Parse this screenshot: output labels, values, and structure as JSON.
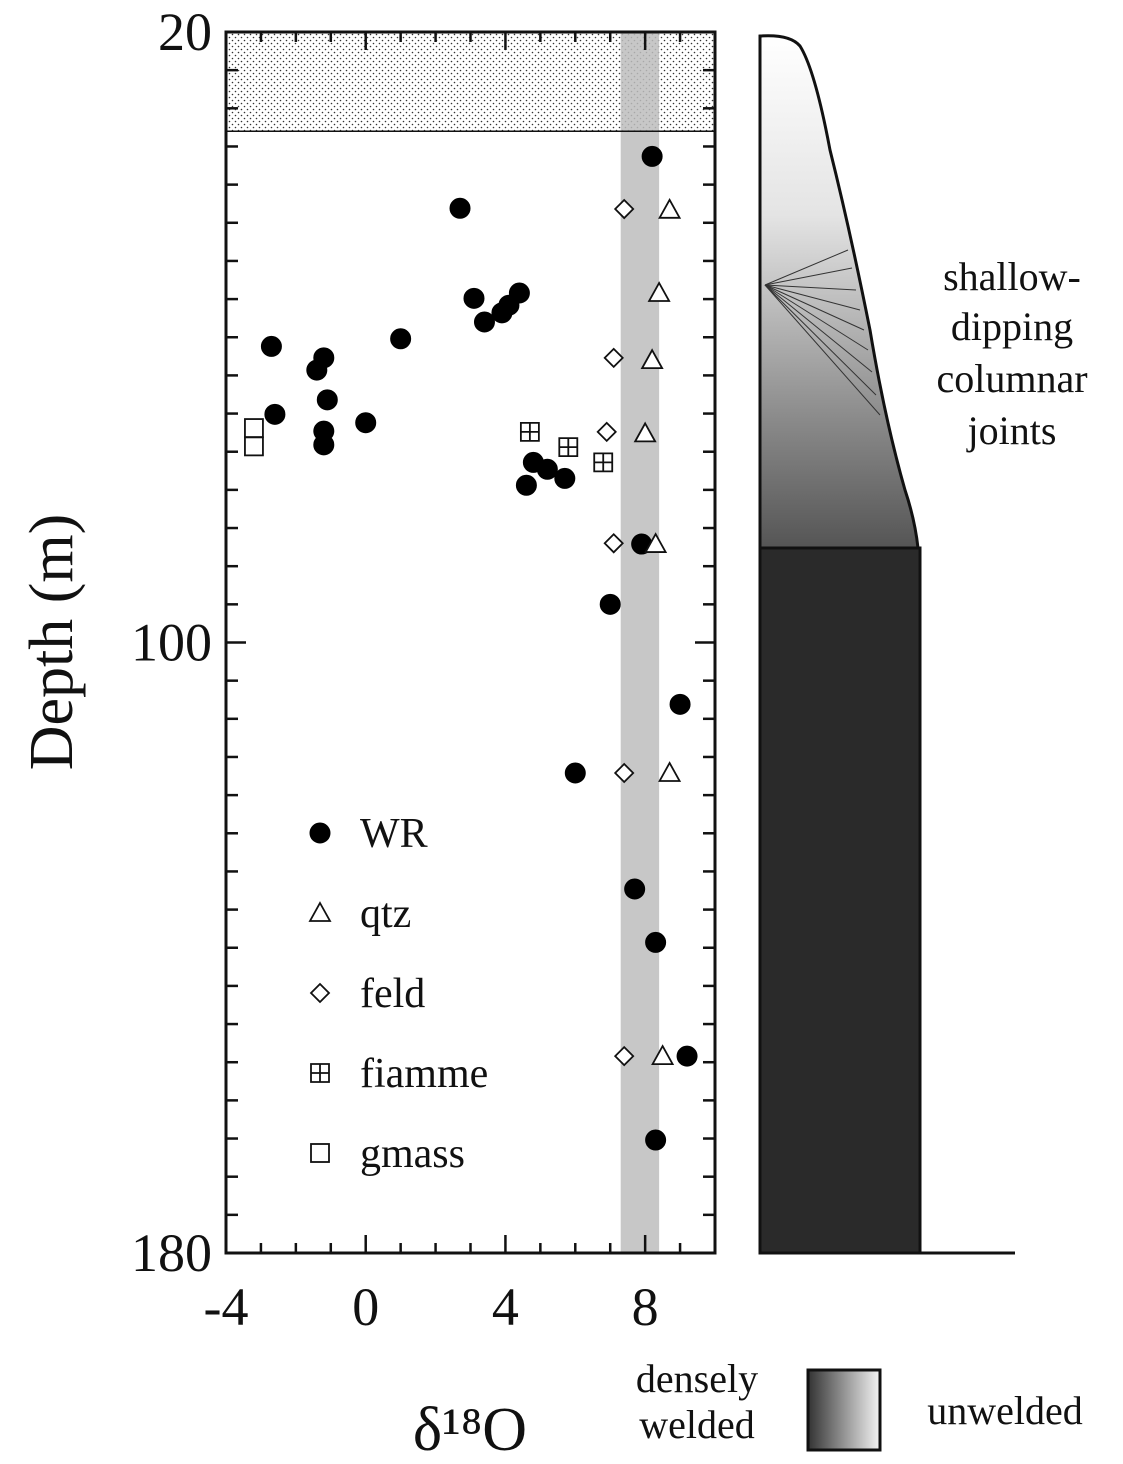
{
  "chart_data": {
    "type": "scatter",
    "xlabel": "δ¹⁸O",
    "ylabel": "Depth (m)",
    "xlim": [
      -4,
      10
    ],
    "ylim": [
      20,
      180
    ],
    "y_inverted": true,
    "xticks": [
      -4,
      0,
      4,
      8
    ],
    "xminorticks": [
      -3,
      -2,
      -1,
      1,
      2,
      3,
      5,
      6,
      7,
      9
    ],
    "yticks": [
      20,
      100,
      180
    ],
    "yminorticks": [
      25,
      30,
      35,
      40,
      45,
      50,
      55,
      60,
      65,
      70,
      75,
      80,
      85,
      90,
      95,
      105,
      110,
      115,
      120,
      125,
      130,
      135,
      140,
      145,
      150,
      155,
      160,
      165,
      170,
      175
    ],
    "stipple_ylim": [
      20,
      33
    ],
    "band_xlim": [
      7.3,
      8.4
    ],
    "series": [
      {
        "name": "WR",
        "marker": "circle",
        "color": "#000",
        "x": [
          8.2,
          2.7,
          3.1,
          3.4,
          3.9,
          4.1,
          4.4,
          1.0,
          -2.7,
          -1.2,
          -1.4,
          -1.1,
          -2.6,
          0.0,
          -1.2,
          -1.2,
          4.8,
          5.2,
          5.7,
          4.6,
          7.9,
          7.0,
          9.0,
          6.0,
          7.7,
          8.3,
          9.2,
          8.3
        ],
        "values": [
          36.3,
          43.1,
          54.9,
          58.0,
          56.8,
          55.8,
          54.2,
          60.2,
          61.2,
          62.7,
          64.3,
          68.2,
          70.1,
          71.2,
          72.3,
          74.1,
          76.4,
          77.3,
          78.5,
          79.4,
          87.1,
          95.0,
          108.1,
          117.1,
          132.3,
          139.3,
          154.2,
          165.2
        ]
      },
      {
        "name": "qtz",
        "marker": "triangle",
        "color": "#000",
        "x": [
          8.7,
          8.4,
          8.2,
          8.0,
          8.3,
          8.7,
          8.5
        ],
        "values": [
          43.3,
          54.2,
          63.0,
          72.6,
          87.1,
          117.1,
          154.2
        ]
      },
      {
        "name": "feld",
        "marker": "diamond",
        "color": "#000",
        "x": [
          7.4,
          7.1,
          6.9,
          7.1,
          7.4,
          7.4
        ],
        "values": [
          43.2,
          62.7,
          72.4,
          87.0,
          117.1,
          154.2
        ]
      },
      {
        "name": "fiamme",
        "marker": "crossed-square",
        "color": "#000",
        "x": [
          4.7,
          5.8,
          6.8
        ],
        "values": [
          72.4,
          74.4,
          76.4
        ]
      },
      {
        "name": "gmass",
        "marker": "square",
        "color": "#000",
        "x": [
          -3.2,
          -3.2
        ],
        "values": [
          71.9,
          74.3
        ]
      }
    ],
    "annotation": [
      "shallow-",
      "dipping",
      "columnar",
      "joints"
    ],
    "welding_legend": {
      "dark": [
        "densely",
        "welded"
      ],
      "light": "unwelded"
    }
  }
}
